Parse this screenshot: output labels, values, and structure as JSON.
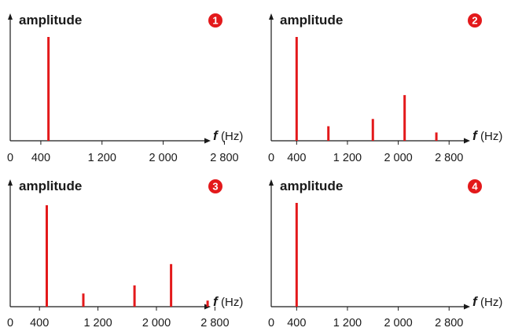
{
  "colors": {
    "axis": "#1a1a1a",
    "bar": "#e3191b",
    "badge": "#e3191b",
    "badge_text": "#ffffff",
    "text": "#1a1a1a"
  },
  "chart_data": [
    {
      "type": "bar",
      "badge": "1",
      "ylabel": "amplitude",
      "xlabel_symbol": "f",
      "xlabel_unit": "(Hz)",
      "xlim": [
        0,
        3200
      ],
      "ylim": [
        0,
        1
      ],
      "xticks": [
        0,
        400,
        1200,
        2000,
        2800
      ],
      "xtick_labels": [
        "0",
        "400",
        "1 200",
        "2 000",
        "2 800"
      ],
      "grid": false,
      "x": [
        500
      ],
      "values": [
        1.0
      ]
    },
    {
      "type": "bar",
      "badge": "2",
      "ylabel": "amplitude",
      "xlabel_symbol": "f",
      "xlabel_unit": "(Hz)",
      "xlim": [
        0,
        3200
      ],
      "ylim": [
        0,
        1
      ],
      "xticks": [
        0,
        400,
        1200,
        2000,
        2800
      ],
      "xtick_labels": [
        "0",
        "400",
        "1 200",
        "2 000",
        "2 800"
      ],
      "grid": false,
      "x": [
        400,
        900,
        1600,
        2100,
        2600
      ],
      "values": [
        1.0,
        0.14,
        0.21,
        0.44,
        0.08
      ]
    },
    {
      "type": "bar",
      "badge": "3",
      "ylabel": "amplitude",
      "xlabel_symbol": "f",
      "xlabel_unit": "(Hz)",
      "xlim": [
        0,
        3200
      ],
      "ylim": [
        0,
        1
      ],
      "xticks": [
        0,
        400,
        1200,
        2000,
        2800
      ],
      "xtick_labels": [
        "0",
        "400",
        "1 200",
        "2 000",
        "2 800"
      ],
      "grid": false,
      "x": [
        500,
        1000,
        1700,
        2200,
        2700
      ],
      "values": [
        1.0,
        0.13,
        0.21,
        0.42,
        0.06
      ]
    },
    {
      "type": "bar",
      "badge": "4",
      "ylabel": "amplitude",
      "xlabel_symbol": "f",
      "xlabel_unit": "(Hz)",
      "xlim": [
        0,
        3200
      ],
      "ylim": [
        0,
        1
      ],
      "xticks": [
        0,
        400,
        1200,
        2000,
        2800
      ],
      "xtick_labels": [
        "0",
        "400",
        "1 200",
        "2 000",
        "2 800"
      ],
      "grid": false,
      "x": [
        400
      ],
      "values": [
        1.0
      ]
    }
  ]
}
